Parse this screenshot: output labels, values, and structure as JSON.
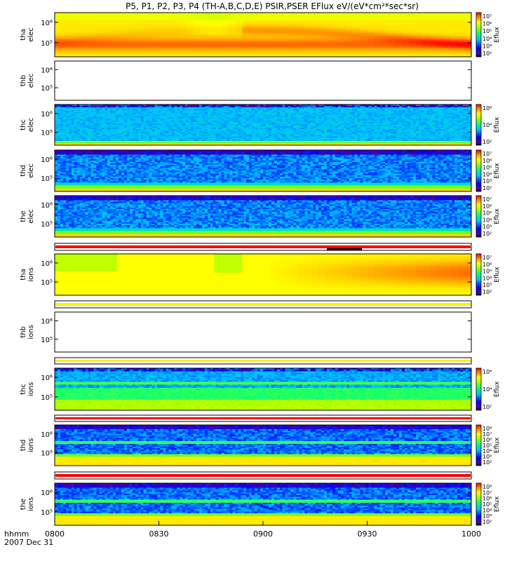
{
  "chart_data": {
    "type": "heatmap",
    "title": "P5, P1, P2, P3, P4 (TH-A,B,C,D,E) PSIR,PSER EFlux eV/(eV*cm²*sec*sr)",
    "colorbar_label": "Eflux",
    "time_axis": {
      "ticks": [
        "0800",
        "0830",
        "0900",
        "0930",
        "1000"
      ],
      "label_format": "hhmm",
      "date": "2007 Dec 31"
    },
    "panels": [
      {
        "label_top": "tha",
        "label_bottom": "elec",
        "y_ticks": [
          "10⁶",
          "10⁵"
        ],
        "style": "smooth_electron",
        "colorbar_ticks": [
          "10⁷",
          "10⁶",
          "10⁵",
          "10⁴",
          "10³",
          "10²"
        ]
      },
      {
        "label_top": "thb",
        "label_bottom": "elec",
        "y_ticks": [
          "10⁶",
          "10⁵"
        ],
        "style": "empty",
        "colorbar_ticks": []
      },
      {
        "label_top": "thc",
        "label_bottom": "elec",
        "y_ticks": [
          "10⁶",
          "10⁵"
        ],
        "style": "noisy_cyan",
        "colorbar_ticks": [
          "10⁶",
          "10⁴",
          "10²"
        ]
      },
      {
        "label_top": "thd",
        "label_bottom": "elec",
        "y_ticks": [
          "10⁶",
          "10⁵"
        ],
        "style": "noisy_blue",
        "colorbar_ticks": [
          "10⁷",
          "10⁶",
          "10⁵",
          "10⁴",
          "10³",
          "10²"
        ]
      },
      {
        "label_top": "the",
        "label_bottom": "elec",
        "y_ticks": [
          "10⁶",
          "10⁵"
        ],
        "style": "noisy_blue",
        "colorbar_ticks": [
          "10⁷",
          "10⁶",
          "10⁵",
          "10⁴",
          "10³",
          "10²"
        ]
      },
      {
        "label_top": "tha",
        "label_bottom": "ions",
        "y_ticks": [
          "10⁶",
          "10⁵"
        ],
        "style": "smooth_ion",
        "colorbar_ticks": [
          "10⁷",
          "10⁶",
          "10⁵",
          "10⁴",
          "10³",
          "10²"
        ]
      },
      {
        "label_top": "thb",
        "label_bottom": "ions",
        "y_ticks": [
          "10⁶",
          "10⁵"
        ],
        "style": "empty",
        "colorbar_ticks": []
      },
      {
        "label_top": "thc",
        "label_bottom": "ions",
        "y_ticks": [
          "10⁶",
          "10⁵"
        ],
        "style": "noisy_cyan_ion",
        "colorbar_ticks": [
          "10⁶",
          "10⁴",
          "10²"
        ]
      },
      {
        "label_top": "thd",
        "label_bottom": "ions",
        "y_ticks": [
          "10⁶",
          "10⁵"
        ],
        "style": "noisy_blue_ion",
        "colorbar_ticks": [
          "10⁸",
          "10⁷",
          "10⁶",
          "10⁵",
          "10⁴",
          "10³",
          "10²"
        ]
      },
      {
        "label_top": "the",
        "label_bottom": "ions",
        "y_ticks": [
          "10⁶",
          "10⁵"
        ],
        "style": "noisy_blue_ion",
        "colorbar_ticks": [
          "10⁸",
          "10⁷",
          "10⁶",
          "10⁵",
          "10⁴",
          "10³",
          "10²"
        ]
      }
    ],
    "mode_bars": [
      {
        "color": "#ff0000"
      },
      {
        "color": "#ffee00"
      },
      {
        "color": "#ffee00"
      },
      {
        "color": "#ff0000"
      },
      {
        "color": "#ff0000"
      }
    ]
  }
}
